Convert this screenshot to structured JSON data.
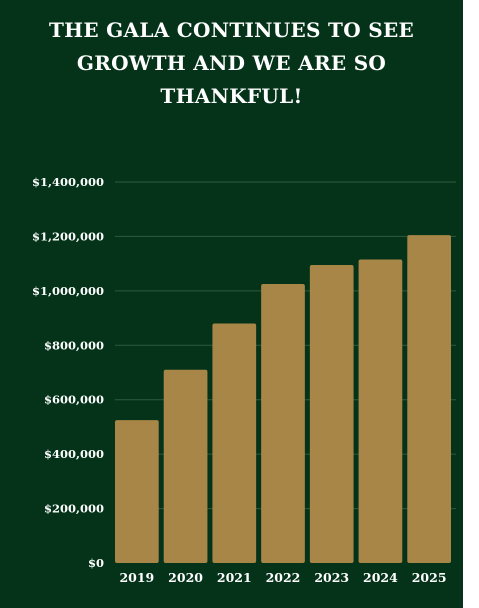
{
  "page": {
    "title": "THE GALA CONTINUES TO SEE GROWTH AND WE ARE SO THANKFUL!"
  },
  "colors": {
    "background": "#04331a",
    "bar": "#a88647",
    "gridline": "#2f5a3c",
    "text": "#ffffff"
  },
  "chart_data": {
    "type": "bar",
    "categories": [
      "2019",
      "2020",
      "2021",
      "2022",
      "2023",
      "2024",
      "2025"
    ],
    "values": [
      525000,
      710000,
      880000,
      1025000,
      1095000,
      1115000,
      1205000
    ],
    "title": "THE GALA CONTINUES TO SEE GROWTH AND WE ARE SO THANKFUL!",
    "xlabel": "",
    "ylabel": "",
    "ylim": [
      0,
      1400000
    ],
    "yticks": [
      0,
      200000,
      400000,
      600000,
      800000,
      1000000,
      1200000,
      1400000
    ],
    "ytick_labels": [
      "$0",
      "$200,000",
      "$400,000",
      "$600,000",
      "$800,000",
      "$1,000,000",
      "$1,200,000",
      "$1,400,000"
    ],
    "grid": true,
    "legend": "none"
  }
}
